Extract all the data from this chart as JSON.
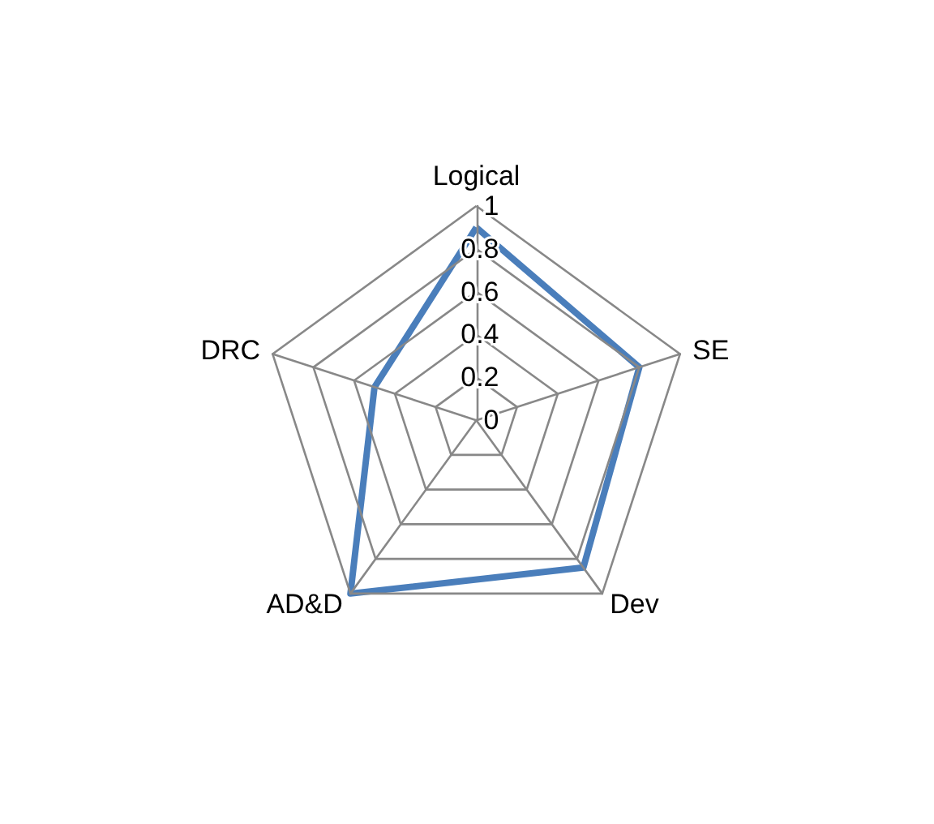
{
  "chart_data": {
    "type": "radar",
    "categories": [
      "Logical",
      "SE",
      "Dev",
      "AD&D",
      "DRC"
    ],
    "series": [
      {
        "color": "#4a7ebb",
        "values": [
          0.9,
          0.8,
          0.85,
          1,
          0.5
        ]
      }
    ],
    "ylim": [
      0,
      1
    ],
    "yticks": [
      0,
      0.2,
      0.4,
      0.6,
      0.8,
      1
    ],
    "grid": true,
    "marker": "none",
    "line_style": "solid"
  }
}
